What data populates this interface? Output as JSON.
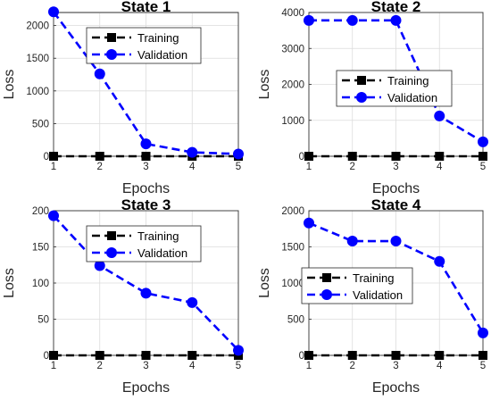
{
  "chart_data": [
    {
      "type": "line",
      "title": "State 1",
      "xlabel": "Epochs",
      "ylabel": "Loss",
      "x": [
        1,
        2,
        3,
        4,
        5
      ],
      "xlim": [
        1,
        5
      ],
      "ylim": [
        0,
        2200
      ],
      "yticks": [
        0,
        500,
        1000,
        1500,
        2000
      ],
      "xticks": [
        1,
        2,
        3,
        4,
        5
      ],
      "grid": true,
      "legend": "top-right",
      "series": [
        {
          "name": "Training",
          "values": [
            0,
            0,
            0,
            0,
            0
          ],
          "color": "#000000",
          "marker": "square"
        },
        {
          "name": "Validation",
          "values": [
            2210,
            1260,
            190,
            60,
            35
          ],
          "color": "#0000ff",
          "marker": "circle"
        }
      ]
    },
    {
      "type": "line",
      "title": "State 2",
      "xlabel": "Epochs",
      "ylabel": "Loss",
      "x": [
        1,
        2,
        3,
        4,
        5
      ],
      "xlim": [
        1,
        5
      ],
      "ylim": [
        0,
        4000
      ],
      "yticks": [
        0,
        1000,
        2000,
        3000,
        4000
      ],
      "xticks": [
        1,
        2,
        3,
        4,
        5
      ],
      "grid": true,
      "legend": "center-right",
      "series": [
        {
          "name": "Training",
          "values": [
            0,
            0,
            0,
            0,
            0
          ],
          "color": "#000000",
          "marker": "square"
        },
        {
          "name": "Validation",
          "values": [
            3780,
            3780,
            3780,
            1120,
            400
          ],
          "color": "#0000ff",
          "marker": "circle"
        }
      ]
    },
    {
      "type": "line",
      "title": "State 3",
      "xlabel": "Epochs",
      "ylabel": "Loss",
      "x": [
        1,
        2,
        3,
        4,
        5
      ],
      "xlim": [
        1,
        5
      ],
      "ylim": [
        0,
        200
      ],
      "yticks": [
        0,
        50,
        100,
        150,
        200
      ],
      "xticks": [
        1,
        2,
        3,
        4,
        5
      ],
      "grid": true,
      "legend": "top-right",
      "series": [
        {
          "name": "Training",
          "values": [
            0,
            0,
            0,
            0,
            0
          ],
          "color": "#000000",
          "marker": "square"
        },
        {
          "name": "Validation",
          "values": [
            193,
            124,
            86,
            73,
            7
          ],
          "color": "#0000ff",
          "marker": "circle"
        }
      ]
    },
    {
      "type": "line",
      "title": "State 4",
      "xlabel": "Epochs",
      "ylabel": "Loss",
      "x": [
        1,
        2,
        3,
        4,
        5
      ],
      "xlim": [
        1,
        5
      ],
      "ylim": [
        0,
        2000
      ],
      "yticks": [
        0,
        500,
        1000,
        1500,
        2000
      ],
      "xticks": [
        1,
        2,
        3,
        4,
        5
      ],
      "grid": true,
      "legend": "center-left",
      "series": [
        {
          "name": "Training",
          "values": [
            0,
            0,
            0,
            0,
            0
          ],
          "color": "#000000",
          "marker": "square"
        },
        {
          "name": "Validation",
          "values": [
            1830,
            1580,
            1580,
            1300,
            310
          ],
          "color": "#0000ff",
          "marker": "circle"
        }
      ]
    }
  ]
}
